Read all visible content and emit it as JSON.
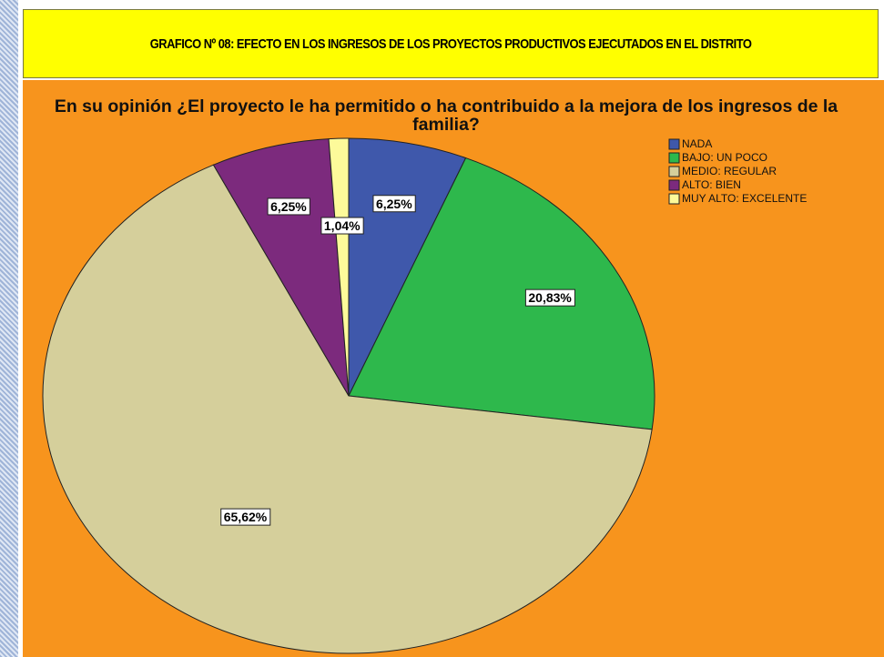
{
  "header": {
    "title": "GRAFICO Nº 08: EFECTO EN LOS INGRESOS DE LOS PROYECTOS PRODUCTIVOS EJECUTADOS EN EL DISTRITO"
  },
  "chart_data": {
    "type": "pie",
    "title": "En su opinión ¿El proyecto le ha permitido o ha contribuido a la mejora de los ingresos de la familia?",
    "categories": [
      "NADA",
      "BAJO: UN POCO",
      "MEDIO: REGULAR",
      "ALTO: BIEN",
      "MUY ALTO: EXCELENTE"
    ],
    "values": [
      6.25,
      20.83,
      65.62,
      6.25,
      1.04
    ],
    "value_labels": [
      "6,25%",
      "20,83%",
      "65,62%",
      "6,25%",
      "1,04%"
    ],
    "colors": [
      "#3f58ab",
      "#2eb84c",
      "#d5cf9b",
      "#7c2a7d",
      "#fdfa9a"
    ],
    "legend": "upper right"
  }
}
